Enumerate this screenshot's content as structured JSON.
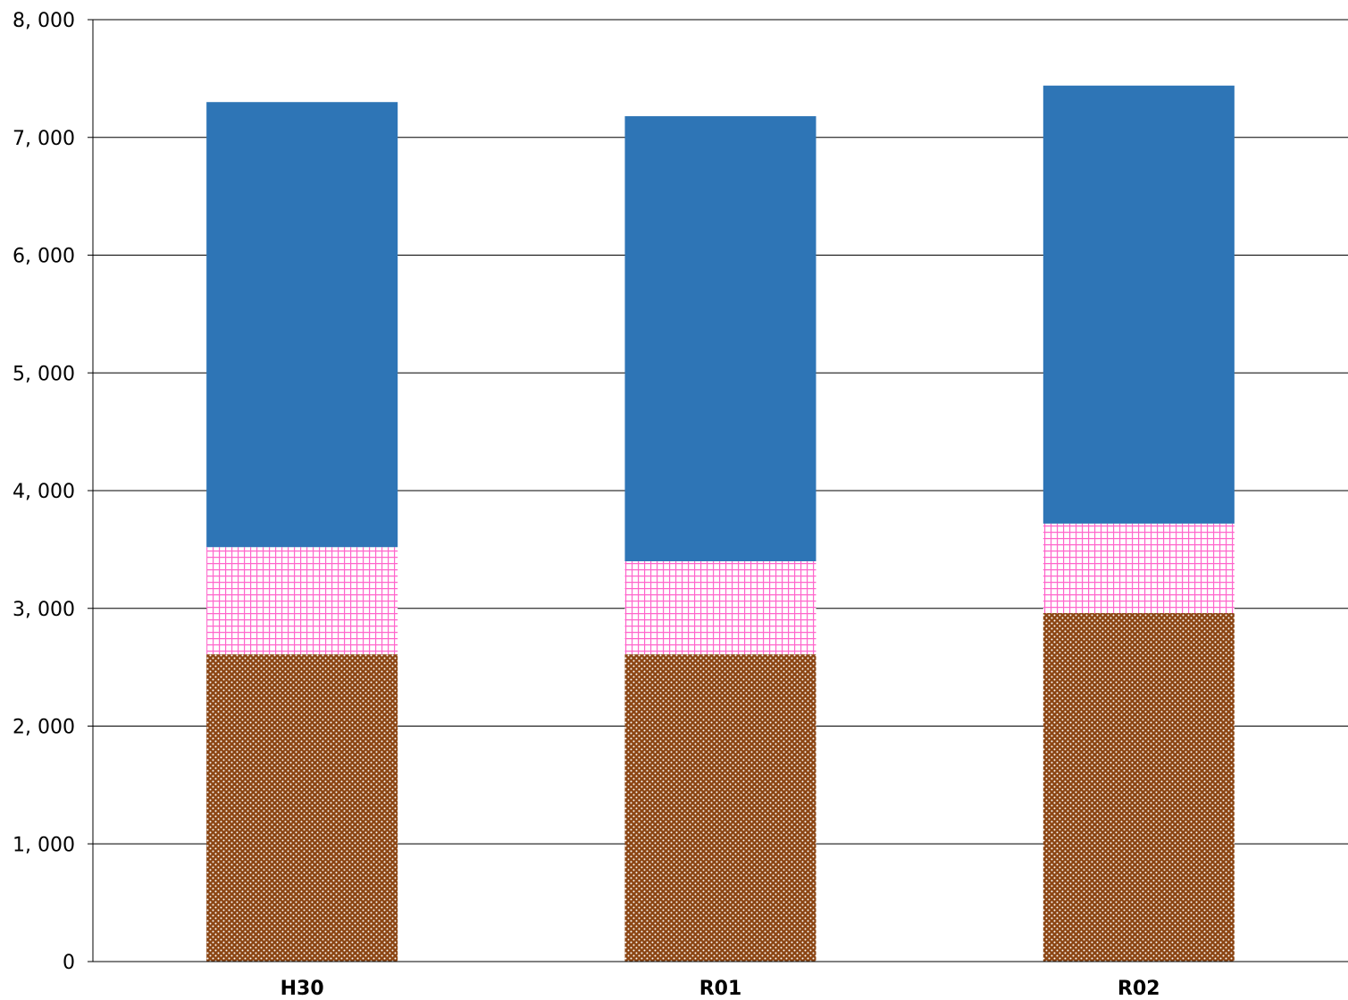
{
  "chart_data": {
    "type": "bar",
    "stacked": true,
    "title": "",
    "xlabel": "",
    "ylabel": "",
    "ylim": [
      0,
      8000
    ],
    "yticks": [
      0,
      1000,
      2000,
      3000,
      4000,
      5000,
      6000,
      7000,
      8000
    ],
    "ytick_labels": [
      "0",
      "1, 000",
      "2, 000",
      "3, 000",
      "4, 000",
      "5, 000",
      "6, 000",
      "7, 000",
      "8, 000"
    ],
    "categories": [
      "H30",
      "R01",
      "R02"
    ],
    "grid": true,
    "legend": "none",
    "series": [
      {
        "values": [
          2610,
          2610,
          2960
        ],
        "color": "#8B4513",
        "pattern": "dots"
      },
      {
        "values": [
          910,
          790,
          760
        ],
        "color": "#FF66CC",
        "pattern": "grid"
      },
      {
        "values": [
          3780,
          3780,
          3720
        ],
        "color": "#2E75B6",
        "pattern": "solid"
      }
    ]
  }
}
